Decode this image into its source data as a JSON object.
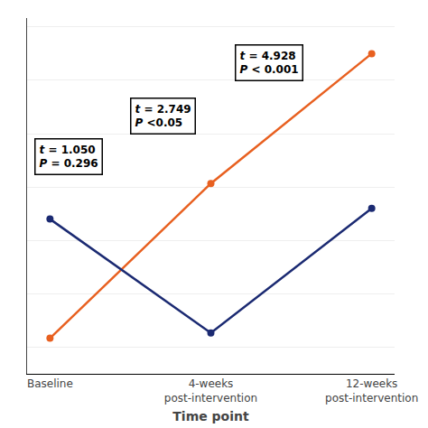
{
  "chart_data": {
    "type": "line",
    "categories": [
      "Baseline",
      "4-weeks\npost-intervention",
      "12-weeks\npost-intervention"
    ],
    "series": [
      {
        "color": "#E86020",
        "values": [
          -0.55,
          0.32,
          1.05
        ]
      },
      {
        "color": "#1B2A72",
        "values": [
          0.12,
          -0.52,
          0.18
        ]
      }
    ],
    "xlabel": "Time point",
    "ylim": [
      -0.75,
      1.25
    ],
    "yticks": [
      -0.6,
      -0.3,
      0,
      0.3,
      0.6,
      0.9,
      1.2
    ],
    "grid": true,
    "tick_labels": "x",
    "marker": "circle",
    "annotations": [
      "t = 1.050\nP = 0.296",
      "t = 2.749\nP <0.05",
      "t = 4.928\nP < 0.001"
    ]
  }
}
